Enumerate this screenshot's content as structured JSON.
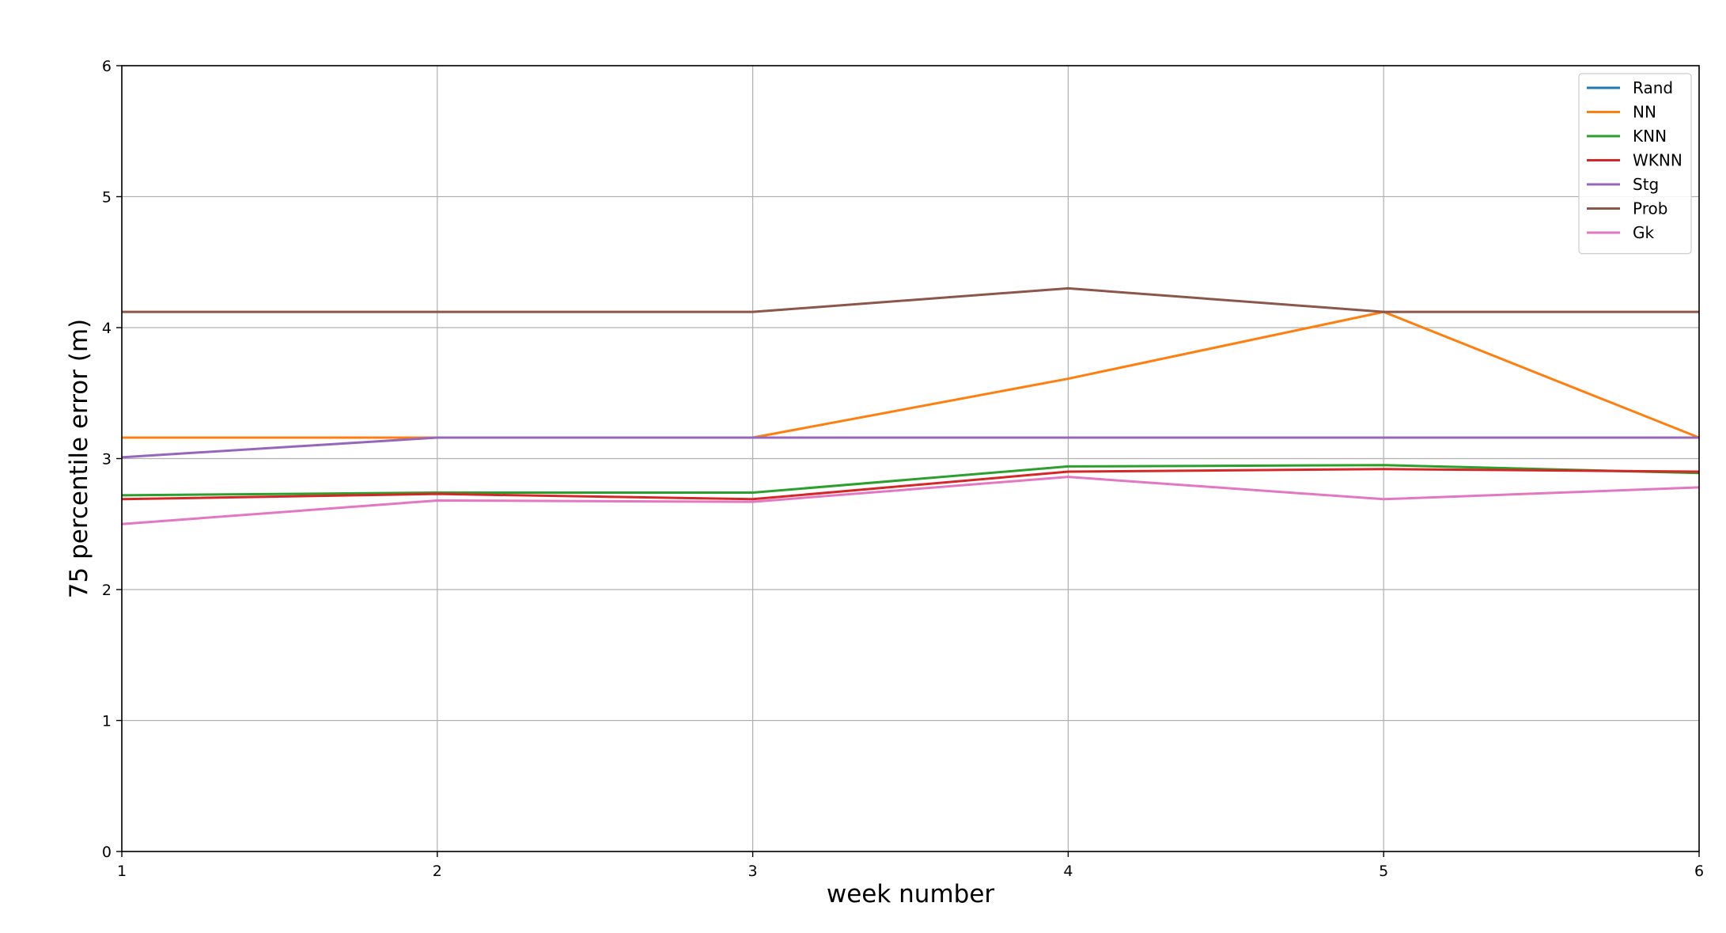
{
  "chart_data": {
    "type": "line",
    "title": "",
    "xlabel": "week number",
    "ylabel": "75 percentile error (m)",
    "xlim": [
      1,
      6
    ],
    "ylim": [
      0,
      6
    ],
    "xticks": [
      1,
      2,
      3,
      4,
      5,
      6
    ],
    "yticks": [
      0,
      1,
      2,
      3,
      4,
      5,
      6
    ],
    "grid": true,
    "legend_position": "top-right",
    "x": [
      1,
      2,
      3,
      4,
      5,
      6
    ],
    "series": [
      {
        "name": "Rand",
        "color": "#1f77b4",
        "values": [
          3.16,
          3.16,
          3.16,
          3.16,
          3.16,
          3.16
        ]
      },
      {
        "name": "NN",
        "color": "#ff7f0e",
        "values": [
          3.16,
          3.16,
          3.16,
          3.61,
          4.12,
          3.16
        ]
      },
      {
        "name": "KNN",
        "color": "#2ca02c",
        "values": [
          2.72,
          2.74,
          2.74,
          2.94,
          2.95,
          2.89
        ]
      },
      {
        "name": "WKNN",
        "color": "#d62728",
        "values": [
          2.69,
          2.73,
          2.69,
          2.9,
          2.92,
          2.9
        ]
      },
      {
        "name": "Stg",
        "color": "#9467bd",
        "values": [
          3.01,
          3.16,
          3.16,
          3.16,
          3.16,
          3.16
        ]
      },
      {
        "name": "Prob",
        "color": "#8c564b",
        "values": [
          4.12,
          4.12,
          4.12,
          4.3,
          4.12,
          4.12
        ]
      },
      {
        "name": "Gk",
        "color": "#e377c2",
        "values": [
          2.5,
          2.68,
          2.67,
          2.86,
          2.69,
          2.78
        ]
      }
    ]
  }
}
